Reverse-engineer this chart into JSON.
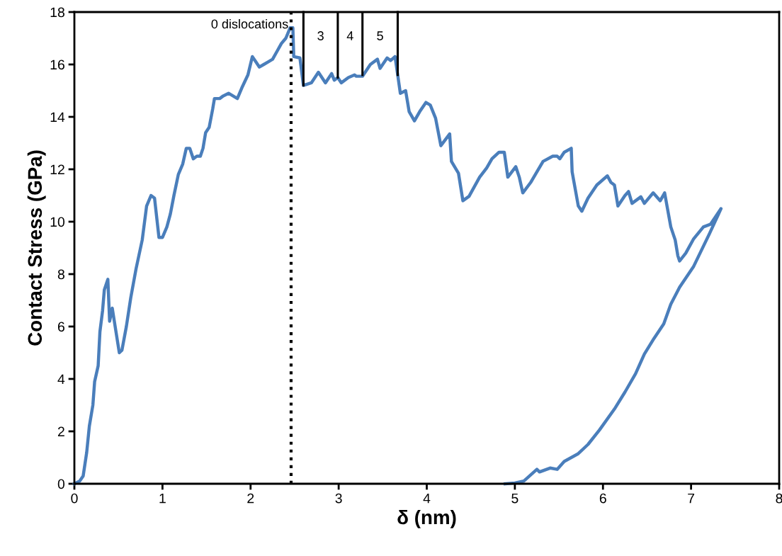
{
  "chart_data": {
    "type": "line",
    "xlabel": "δ (nm)",
    "ylabel": "Contact Stress (GPa)",
    "xlim": [
      0,
      8
    ],
    "xticks": [
      0,
      1,
      2,
      3,
      4,
      5,
      6,
      7,
      8
    ],
    "ylim": [
      0,
      18
    ],
    "yticks": [
      0,
      2,
      4,
      6,
      8,
      10,
      12,
      14,
      16,
      18
    ],
    "grid": false,
    "legend": false,
    "marker": "none",
    "series": [
      {
        "color": "#4a7ebb",
        "line_style": "solid",
        "x": [
          0,
          0.06,
          0.1,
          0.14,
          0.17,
          0.21,
          0.23,
          0.27,
          0.29,
          0.32,
          0.34,
          0.38,
          0.4,
          0.43,
          0.51,
          0.54,
          0.59,
          0.64,
          0.7,
          0.77,
          0.82,
          0.87,
          0.91,
          0.96,
          1.0,
          1.05,
          1.09,
          1.13,
          1.18,
          1.23,
          1.27,
          1.31,
          1.35,
          1.39,
          1.43,
          1.46,
          1.49,
          1.53,
          1.57,
          1.59,
          1.65,
          1.69,
          1.75,
          1.8,
          1.85,
          1.9,
          1.97,
          2.02,
          2.06,
          2.1,
          2.15,
          2.2,
          2.25,
          2.3,
          2.35,
          2.4,
          2.45,
          2.48,
          2.49,
          2.56,
          2.6,
          2.69,
          2.77,
          2.85,
          2.92,
          2.95,
          2.99,
          3.03,
          3.11,
          3.18,
          3.2,
          3.27,
          3.36,
          3.44,
          3.47,
          3.55,
          3.59,
          3.64,
          3.67,
          3.7,
          3.76,
          3.8,
          3.86,
          3.92,
          3.99,
          4.04,
          4.1,
          4.16,
          4.26,
          4.28,
          4.36,
          4.41,
          4.48,
          4.6,
          4.68,
          4.74,
          4.82,
          4.88,
          4.92,
          5.01,
          5.05,
          5.09,
          5.18,
          5.32,
          5.43,
          5.48,
          5.51,
          5.56,
          5.64,
          5.65,
          5.72,
          5.76,
          5.83,
          5.93,
          6.05,
          6.09,
          6.13,
          6.17,
          6.25,
          6.29,
          6.33,
          6.43,
          6.47,
          6.57,
          6.65,
          6.7,
          6.77,
          6.82,
          6.85,
          6.87,
          6.94,
          7.03,
          7.14,
          7.22,
          7.34,
          7.21,
          7.03,
          6.87,
          6.77,
          6.69,
          6.58,
          6.47,
          6.37,
          6.25,
          6.13,
          5.96,
          5.83,
          5.72,
          5.64,
          5.56,
          5.48,
          5.4,
          5.28,
          5.25,
          5.1,
          5.0,
          4.89
        ],
        "values": [
          0,
          0.1,
          0.3,
          1.2,
          2.2,
          3.0,
          3.9,
          4.5,
          5.8,
          6.6,
          7.4,
          7.8,
          6.2,
          6.7,
          5.0,
          5.1,
          6.0,
          7.1,
          8.2,
          9.3,
          10.6,
          11.0,
          10.9,
          9.4,
          9.4,
          9.8,
          10.3,
          11.0,
          11.8,
          12.2,
          12.8,
          12.8,
          12.4,
          12.5,
          12.5,
          12.8,
          13.4,
          13.6,
          14.3,
          14.7,
          14.7,
          14.8,
          14.9,
          14.8,
          14.7,
          15.1,
          15.6,
          16.3,
          16.1,
          15.9,
          16.0,
          16.1,
          16.2,
          16.5,
          16.8,
          17.0,
          17.4,
          17.4,
          16.3,
          16.25,
          15.2,
          15.3,
          15.7,
          15.3,
          15.65,
          15.4,
          15.5,
          15.3,
          15.5,
          15.6,
          15.55,
          15.55,
          16.0,
          16.2,
          15.85,
          16.25,
          16.15,
          16.3,
          15.6,
          14.9,
          15.0,
          14.2,
          13.85,
          14.2,
          14.55,
          14.45,
          13.95,
          12.9,
          13.35,
          12.3,
          11.85,
          10.8,
          10.97,
          11.7,
          12.05,
          12.4,
          12.65,
          12.65,
          11.7,
          12.1,
          11.7,
          11.1,
          11.5,
          12.3,
          12.5,
          12.5,
          12.4,
          12.65,
          12.8,
          11.9,
          10.6,
          10.4,
          10.9,
          11.4,
          11.75,
          11.5,
          11.4,
          10.6,
          11.0,
          11.15,
          10.7,
          10.95,
          10.7,
          11.1,
          10.8,
          11.1,
          9.8,
          9.3,
          8.7,
          8.5,
          8.8,
          9.35,
          9.8,
          9.9,
          10.5,
          9.55,
          8.3,
          7.5,
          6.85,
          6.1,
          5.55,
          4.95,
          4.2,
          3.5,
          2.85,
          2.05,
          1.5,
          1.15,
          1.0,
          0.85,
          0.55,
          0.6,
          0.45,
          0.55,
          0.1,
          0.03,
          0
        ]
      },
      {
        "color": "#000000",
        "line_style": "solid",
        "x": [
          2.6,
          2.6
        ],
        "values": [
          18,
          15.2
        ]
      },
      {
        "color": "#000000",
        "line_style": "solid",
        "x": [
          2.99,
          2.99
        ],
        "values": [
          17.95,
          15.5
        ]
      },
      {
        "color": "#000000",
        "line_style": "solid",
        "x": [
          3.27,
          3.27
        ],
        "values": [
          17.95,
          15.6
        ]
      },
      {
        "color": "#000000",
        "line_style": "solid",
        "x": [
          3.67,
          3.67
        ],
        "values": [
          18,
          15.6
        ]
      }
    ],
    "ref_lines": [
      {
        "axis": "x",
        "value": 2.46,
        "color": "#000000",
        "line_style": "dotted"
      }
    ],
    "annotations": [
      "0 dislocations",
      "3",
      "4",
      "5"
    ]
  }
}
